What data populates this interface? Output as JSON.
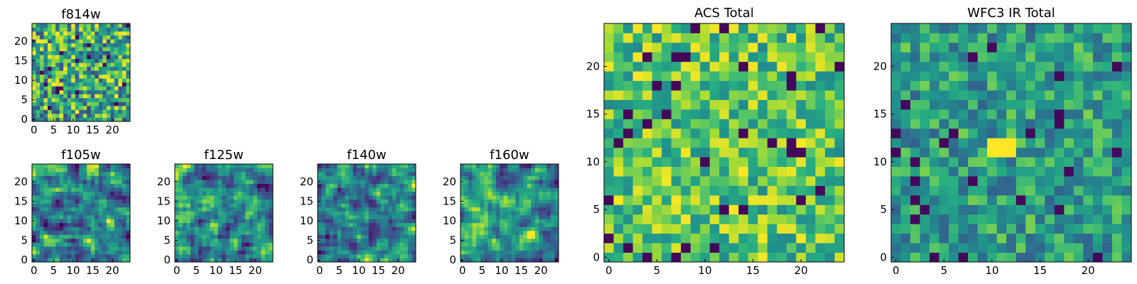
{
  "chart_data": [
    {
      "type": "heatmap",
      "title": "f814w",
      "grid_size": 25,
      "colormap": "viridis",
      "x_ticks": [
        "0",
        "5",
        "10",
        "15",
        "20"
      ],
      "y_ticks": [
        "0",
        "5",
        "10",
        "15",
        "20"
      ],
      "xlim": [
        0,
        25
      ],
      "ylim": [
        0,
        25
      ],
      "pattern": "fine-noise",
      "seed": 11
    },
    {
      "type": "heatmap",
      "title": "f105w",
      "grid_size": 25,
      "colormap": "viridis",
      "x_ticks": [
        "0",
        "5",
        "10",
        "15",
        "20"
      ],
      "y_ticks": [
        "0",
        "5",
        "10",
        "15",
        "20"
      ],
      "xlim": [
        0,
        25
      ],
      "ylim": [
        0,
        25
      ],
      "pattern": "smooth-noise",
      "seed": 23
    },
    {
      "type": "heatmap",
      "title": "f125w",
      "grid_size": 25,
      "colormap": "viridis",
      "x_ticks": [
        "0",
        "5",
        "10",
        "15",
        "20"
      ],
      "y_ticks": [
        "0",
        "5",
        "10",
        "15",
        "20"
      ],
      "xlim": [
        0,
        25
      ],
      "ylim": [
        0,
        25
      ],
      "pattern": "smooth-noise",
      "seed": 37
    },
    {
      "type": "heatmap",
      "title": "f140w",
      "grid_size": 25,
      "colormap": "viridis",
      "x_ticks": [
        "0",
        "5",
        "10",
        "15",
        "20"
      ],
      "y_ticks": [
        "0",
        "5",
        "10",
        "15",
        "20"
      ],
      "xlim": [
        0,
        25
      ],
      "ylim": [
        0,
        25
      ],
      "pattern": "smooth-noise",
      "seed": 41
    },
    {
      "type": "heatmap",
      "title": "f160w",
      "grid_size": 25,
      "colormap": "viridis",
      "x_ticks": [
        "0",
        "5",
        "10",
        "15",
        "20"
      ],
      "y_ticks": [
        "0",
        "5",
        "10",
        "15",
        "20"
      ],
      "xlim": [
        0,
        25
      ],
      "ylim": [
        0,
        25
      ],
      "pattern": "smooth-noise",
      "seed": 53
    },
    {
      "type": "heatmap",
      "title": "ACS Total",
      "grid_size": 25,
      "colormap": "viridis",
      "x_ticks": [
        "0",
        "5",
        "10",
        "15",
        "20"
      ],
      "y_ticks": [
        "0",
        "5",
        "10",
        "15",
        "20"
      ],
      "xlim": [
        0,
        25
      ],
      "ylim": [
        0,
        25
      ],
      "pattern": "bright-noise",
      "seed": 67
    },
    {
      "type": "heatmap",
      "title": "WFC3 IR Total",
      "grid_size": 25,
      "colormap": "viridis",
      "x_ticks": [
        "0",
        "5",
        "10",
        "15",
        "20"
      ],
      "y_ticks": [
        "0",
        "5",
        "10",
        "15",
        "20"
      ],
      "xlim": [
        0,
        25
      ],
      "ylim": [
        0,
        25
      ],
      "pattern": "mid-noise",
      "seed": 79,
      "bright_patch": {
        "x": [
          10,
          12
        ],
        "y": [
          11,
          12
        ]
      }
    }
  ]
}
